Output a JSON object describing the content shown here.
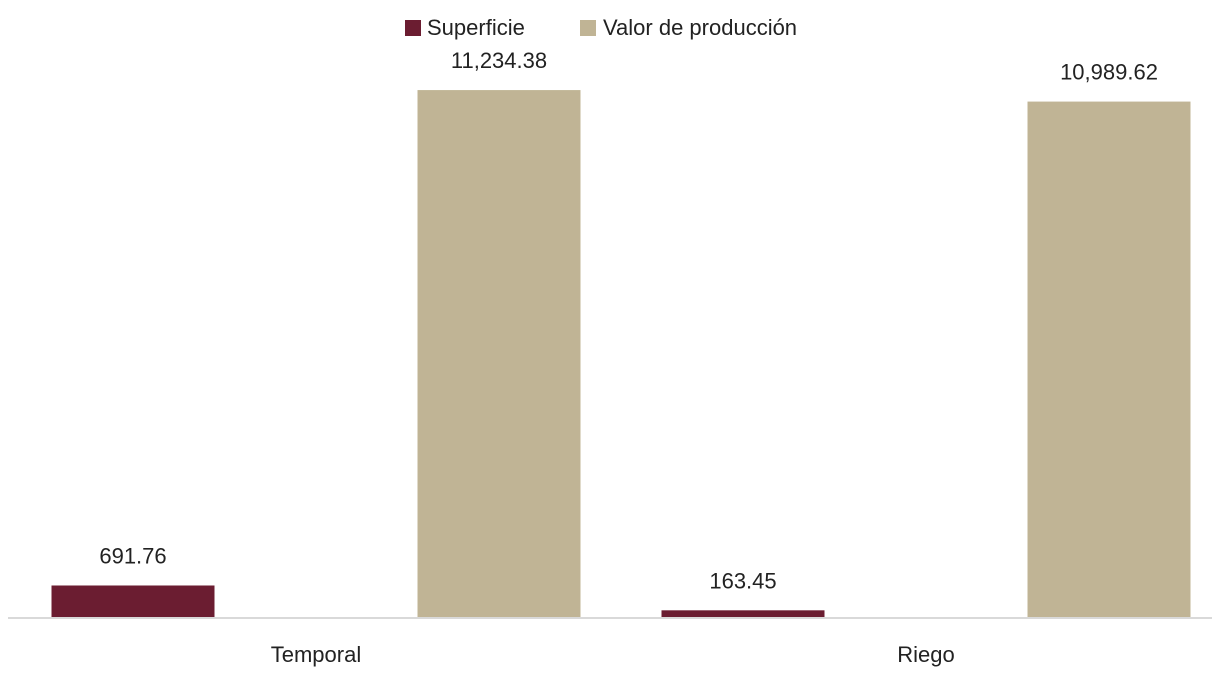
{
  "chart_data": {
    "type": "bar",
    "categories": [
      "Temporal",
      "Riego"
    ],
    "series": [
      {
        "name": "Superficie",
        "values": [
          691.76,
          163.45
        ],
        "labels": [
          "691.76",
          "163.45"
        ],
        "color": "#6b1d31"
      },
      {
        "name": "Valor de producción",
        "values": [
          11234.38,
          10989.62
        ],
        "labels": [
          "11,234.38",
          "10,989.62"
        ],
        "color": "#c0b495"
      }
    ],
    "legend_position": "top",
    "grid": false,
    "ylim": [
      0,
      12300
    ],
    "axis_color": "#d9d9d9",
    "text_color": "#222222"
  }
}
